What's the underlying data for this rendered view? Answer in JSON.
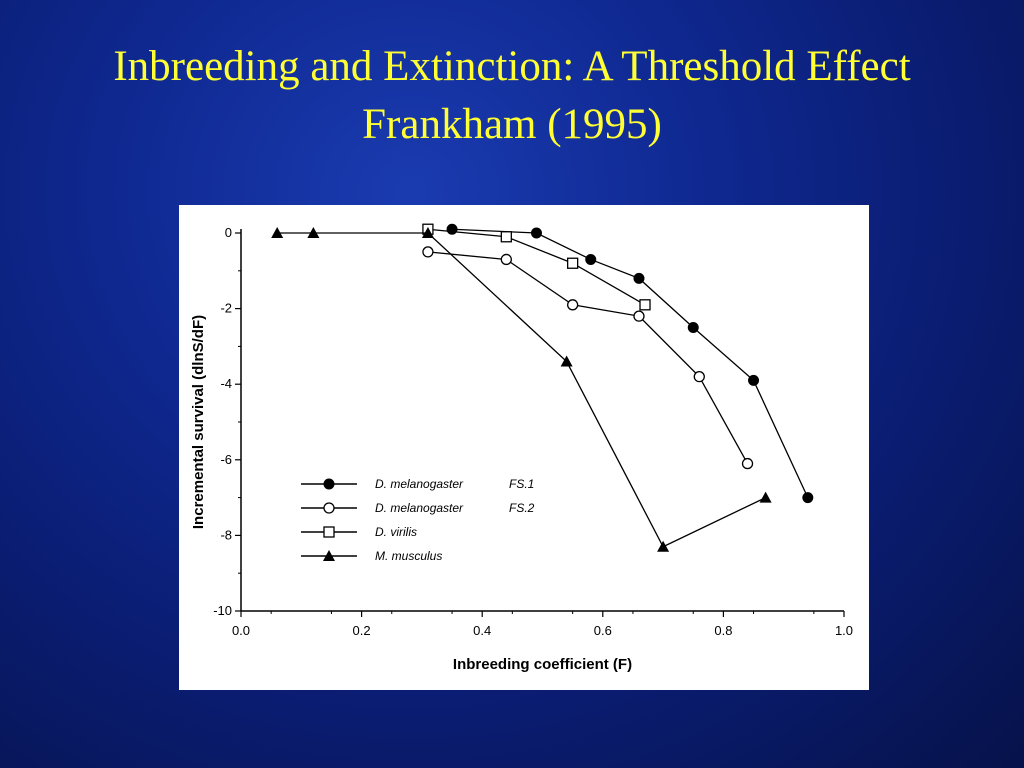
{
  "slide": {
    "title_line1": "Inbreeding and Extinction: A Threshold Effect",
    "title_line2": "Frankham (1995)"
  },
  "chart_data": {
    "type": "line",
    "xlabel": "Inbreeding coefficient (F)",
    "ylabel": "Incremental survival (dlnS/dF)",
    "xlim": [
      0.0,
      1.0
    ],
    "ylim": [
      -10,
      0
    ],
    "xticks": [
      0.0,
      0.2,
      0.4,
      0.6,
      0.8,
      1.0
    ],
    "xtick_labels": [
      "0.0",
      "0.2",
      "0.4",
      "0.6",
      "0.8",
      "1.0"
    ],
    "yticks": [
      0,
      -2,
      -4,
      -6,
      -8,
      -10
    ],
    "ytick_labels": [
      "0",
      "-2",
      "-4",
      "-6",
      "-8",
      "-10"
    ],
    "grid": false,
    "legend_position": "bottom-left",
    "series": [
      {
        "name": "D. melanogaster",
        "suffix": "FS.1",
        "marker": "filled-circle",
        "x": [
          0.35,
          0.49,
          0.58,
          0.66,
          0.75,
          0.85,
          0.94
        ],
        "y": [
          0.1,
          0.0,
          -0.7,
          -1.2,
          -2.5,
          -3.9,
          -7.0
        ]
      },
      {
        "name": "D. melanogaster",
        "suffix": "FS.2",
        "marker": "open-circle",
        "x": [
          0.31,
          0.44,
          0.55,
          0.66,
          0.76,
          0.84
        ],
        "y": [
          -0.5,
          -0.7,
          -1.9,
          -2.2,
          -3.8,
          -6.1
        ]
      },
      {
        "name": "D. virilis",
        "suffix": "",
        "marker": "open-square",
        "x": [
          0.31,
          0.44,
          0.55,
          0.67
        ],
        "y": [
          0.1,
          -0.1,
          -0.8,
          -1.9
        ]
      },
      {
        "name": "M. musculus",
        "suffix": "",
        "marker": "filled-triangle",
        "x": [
          0.06,
          0.12,
          0.31,
          0.54,
          0.7,
          0.87
        ],
        "y": [
          0.0,
          0.0,
          0.0,
          -3.4,
          -8.3,
          -7.0
        ]
      }
    ]
  }
}
